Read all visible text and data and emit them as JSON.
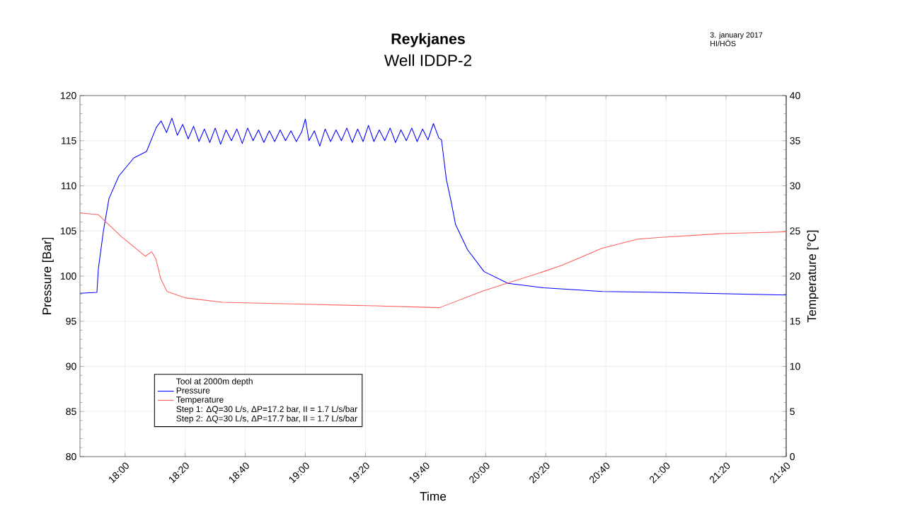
{
  "chart_data": {
    "type": "line",
    "title": "Reykjanes",
    "subtitle": "Well IDDP-2",
    "xlabel": "Time",
    "ylabel": "Pressure [Bar]",
    "y2label": "Temperature [°C]",
    "legend_title": "Tool at 2000m depth",
    "annotations": [
      "Step 1: ΔQ=30 L/s, ΔP=17.2 bar, II = 1.7 L/s/bar",
      "Step 2: ΔQ=30 L/s, ΔP=17.7 bar, II = 1.7 L/s/bar",
      "3. january 2017",
      "HI/HÖS"
    ],
    "xlim": [
      17.75,
      21.6667
    ],
    "ylim": [
      80,
      120
    ],
    "y2lim": [
      0,
      40
    ],
    "xticks": [
      {
        "value": 18,
        "label": "18:00"
      },
      {
        "value": 18.3333,
        "label": "18:20"
      },
      {
        "value": 18.6667,
        "label": "18:40"
      },
      {
        "value": 19,
        "label": "19:00"
      },
      {
        "value": 19.3333,
        "label": "19:20"
      },
      {
        "value": 19.6667,
        "label": "19:40"
      },
      {
        "value": 20,
        "label": "20:00"
      },
      {
        "value": 20.3333,
        "label": "20:20"
      },
      {
        "value": 20.6667,
        "label": "20:40"
      },
      {
        "value": 21,
        "label": "21:00"
      },
      {
        "value": 21.3333,
        "label": "21:20"
      },
      {
        "value": 21.6667,
        "label": "21:40"
      }
    ],
    "yticks": [
      80,
      85,
      90,
      95,
      100,
      105,
      110,
      115,
      120
    ],
    "y2ticks": [
      0,
      5,
      10,
      15,
      20,
      25,
      30,
      35,
      40
    ],
    "grid": true,
    "legend": "bottom left",
    "marker": "none",
    "line_style": "solid",
    "series": [
      {
        "name": "Pressure",
        "color": "#0000ff",
        "x": [
          17.75,
          17.844,
          17.852,
          17.88,
          17.911,
          17.966,
          18.049,
          18.119,
          18.174,
          18.2,
          18.23,
          18.26,
          18.29,
          18.32,
          18.35,
          18.38,
          18.41,
          18.44,
          18.47,
          18.5,
          18.53,
          18.56,
          18.59,
          18.62,
          18.65,
          18.68,
          18.71,
          18.74,
          18.77,
          18.8,
          18.83,
          18.86,
          18.89,
          18.92,
          18.95,
          18.98,
          19.0,
          19.02,
          19.05,
          19.08,
          19.11,
          19.14,
          19.17,
          19.2,
          19.23,
          19.26,
          19.29,
          19.32,
          19.35,
          19.38,
          19.41,
          19.44,
          19.47,
          19.5,
          19.53,
          19.56,
          19.59,
          19.62,
          19.65,
          19.68,
          19.71,
          19.74,
          19.755,
          19.782,
          19.81,
          19.833,
          19.9,
          19.991,
          20.124,
          20.321,
          20.647,
          20.973,
          21.6667
        ],
        "values": [
          98.1,
          98.2,
          100.8,
          105.0,
          108.6,
          111.1,
          113.1,
          113.8,
          116.5,
          117.2,
          115.9,
          117.5,
          115.6,
          116.8,
          115.2,
          116.6,
          114.9,
          116.3,
          114.8,
          116.4,
          114.6,
          116.2,
          115.0,
          116.3,
          114.7,
          116.4,
          115.0,
          116.2,
          114.8,
          116.1,
          114.9,
          116.2,
          115.0,
          116.1,
          114.9,
          116.0,
          117.4,
          115.0,
          116.1,
          114.4,
          116.3,
          114.9,
          116.2,
          115.0,
          116.4,
          114.8,
          116.3,
          114.9,
          116.7,
          114.9,
          116.2,
          115.0,
          116.4,
          114.8,
          116.2,
          115.0,
          116.4,
          114.9,
          116.3,
          115.1,
          116.9,
          115.3,
          115.1,
          110.7,
          108.1,
          105.7,
          102.9,
          100.5,
          99.2,
          98.7,
          98.3,
          98.2,
          97.9
        ]
      },
      {
        "name": "Temperature",
        "color": "#ff6060",
        "axis": "y2",
        "x": [
          17.75,
          17.852,
          17.978,
          18.112,
          18.147,
          18.171,
          18.198,
          18.233,
          18.332,
          18.54,
          18.961,
          19.385,
          19.743,
          19.991,
          20.321,
          20.423,
          20.647,
          20.844,
          20.973,
          21.303,
          21.6667
        ],
        "values": [
          27.0,
          26.8,
          24.4,
          22.2,
          22.7,
          21.9,
          19.7,
          18.3,
          17.6,
          17.1,
          16.9,
          16.7,
          16.5,
          18.4,
          20.5,
          21.2,
          23.1,
          24.1,
          24.3,
          24.7,
          24.9
        ]
      }
    ]
  }
}
